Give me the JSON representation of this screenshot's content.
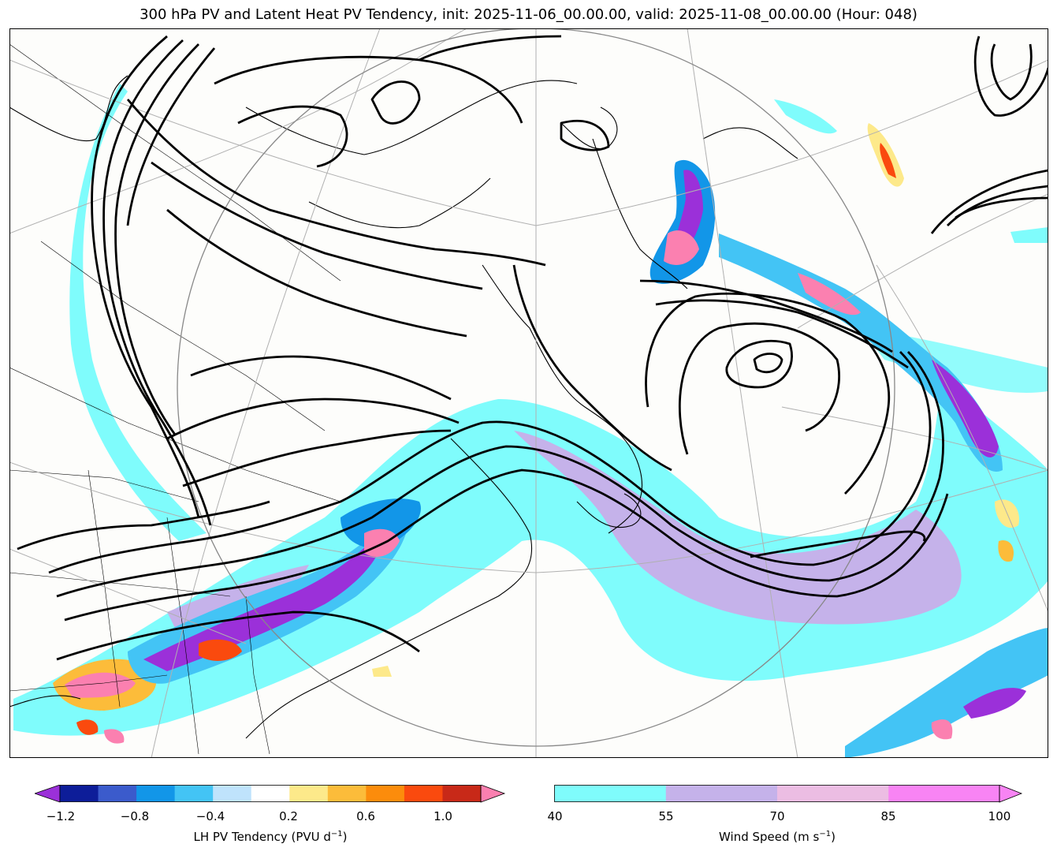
{
  "title": "300 hPa PV and Latent Heat PV Tendency, init: 2025-11-06_00.00.00, valid: 2025-11-08_00.00.00 (Hour: 048)",
  "lh_colorbar": {
    "label_main": "LH PV Tendency (PVU d",
    "label_sup": "−1",
    "label_end": ")",
    "ticks": [
      "−1.2",
      "−0.8",
      "−0.4",
      "0.2",
      "0.6",
      "1.0"
    ],
    "colors": [
      "#9b30d9",
      "#0d1d99",
      "#3b5bcc",
      "#1296e8",
      "#43c4f5",
      "#bfe3fc",
      "#ffffff",
      "#fde98a",
      "#fcbc3a",
      "#fc8c0c",
      "#fa4a0e",
      "#c82918",
      "#fb80b0"
    ]
  },
  "wind_colorbar": {
    "label_main": "Wind Speed (m s",
    "label_sup": "−1",
    "label_end": ")",
    "ticks": [
      "40",
      "55",
      "70",
      "85",
      "100"
    ],
    "colors": [
      "#7ffcfc",
      "#c5b2ea",
      "#ecbde3",
      "#f884f4"
    ]
  }
}
